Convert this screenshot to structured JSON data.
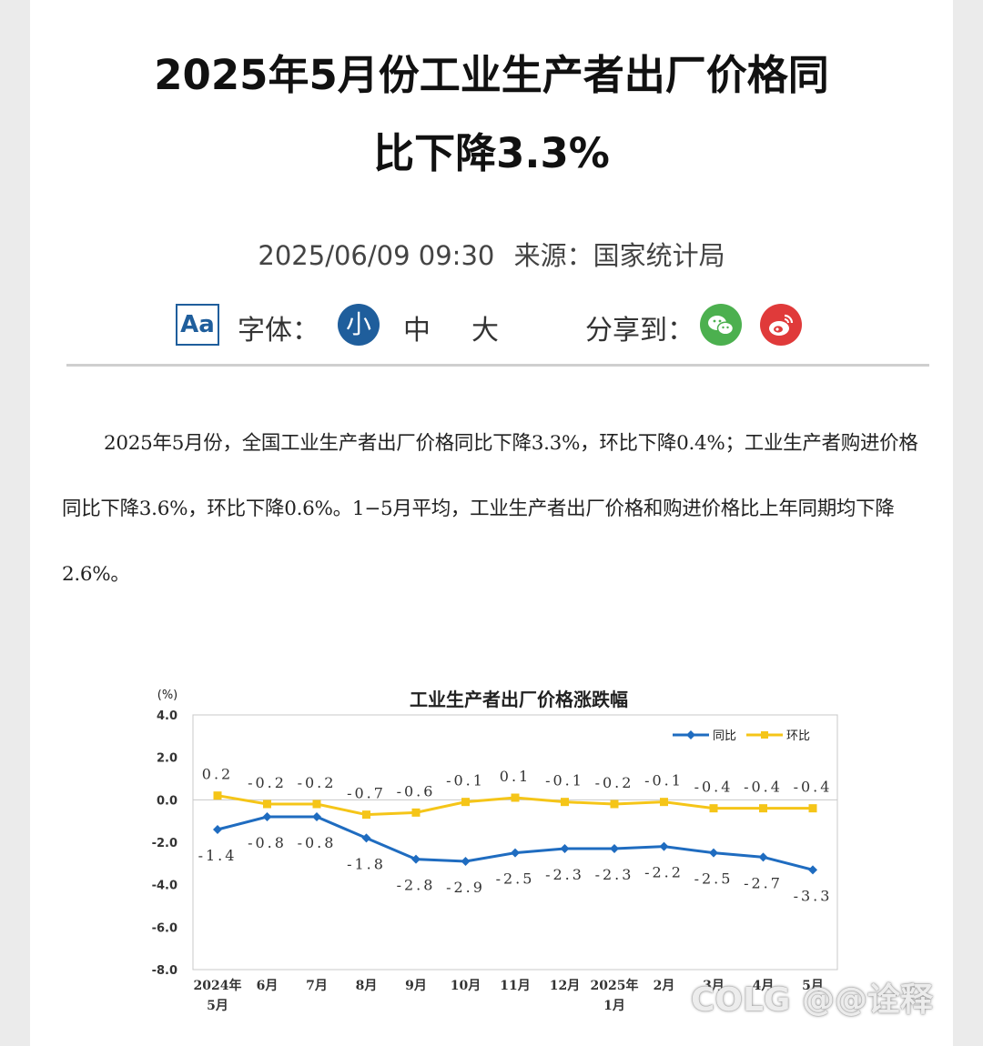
{
  "header": {
    "title_line1": "2025年5月份工业生产者出厂价格同",
    "title_line2": "比下降3.3%",
    "datetime": "2025/06/09 09:30",
    "source": "来源：国家统计局"
  },
  "toolbar": {
    "font_icon_label": "Aa",
    "font_label": "字体：",
    "size_small": "小",
    "size_medium": "中",
    "size_large": "大",
    "share_label": "分享到：",
    "share_icons": [
      "wechat-icon",
      "weibo-icon"
    ],
    "accent_color": "#1f5e9c",
    "wechat_color": "#4cb04f",
    "weibo_color": "#e03a3a"
  },
  "article": {
    "paragraph": "2025年5月份，全国工业生产者出厂价格同比下降3.3%，环比下降0.4%；工业生产者购进价格同比下降3.6%，环比下降0.6%。1−5月平均，工业生产者出厂价格和购进价格比上年同期均下降2.6%。"
  },
  "chart_data": {
    "type": "line",
    "title": "工业生产者出厂价格涨跌幅",
    "ylabel": "(%)",
    "ylim": [
      -8.0,
      4.0
    ],
    "yticks": [
      "4.0",
      "2.0",
      "0.0",
      "-2.0",
      "-4.0",
      "-6.0",
      "-8.0"
    ],
    "categories": [
      [
        "2024年",
        "5月"
      ],
      [
        "6月"
      ],
      [
        "7月"
      ],
      [
        "8月"
      ],
      [
        "9月"
      ],
      [
        "10月"
      ],
      [
        "11月"
      ],
      [
        "12月"
      ],
      [
        "2025年",
        "1月"
      ],
      [
        "2月"
      ],
      [
        "3月"
      ],
      [
        "4月"
      ],
      [
        "5月"
      ]
    ],
    "series": [
      {
        "name": "同比",
        "color": "#1f6cc0",
        "values": [
          -1.4,
          -0.8,
          -0.8,
          -1.8,
          -2.8,
          -2.9,
          -2.5,
          -2.3,
          -2.3,
          -2.2,
          -2.5,
          -2.7,
          -3.3
        ],
        "labels": [
          "-1.4",
          "-0.8",
          "-0.8",
          "-1.8",
          "-2.8",
          "-2.9",
          "-2.5",
          "-2.3",
          "-2.3",
          "-2.2",
          "-2.5",
          "-2.7",
          "-3.3"
        ]
      },
      {
        "name": "环比",
        "color": "#f5c518",
        "values": [
          0.2,
          -0.2,
          -0.2,
          -0.7,
          -0.6,
          -0.1,
          0.1,
          -0.1,
          -0.2,
          -0.1,
          -0.4,
          -0.4,
          -0.4
        ],
        "labels": [
          "0.2",
          "-0.2",
          "-0.2",
          "-0.7",
          "-0.6",
          "-0.1",
          "0.1",
          "-0.1",
          "-0.2",
          "-0.1",
          "-0.4",
          "-0.4",
          "-0.4"
        ]
      }
    ],
    "legend_position": "top-right",
    "grid": false
  },
  "watermark": "COLG @@诠释"
}
